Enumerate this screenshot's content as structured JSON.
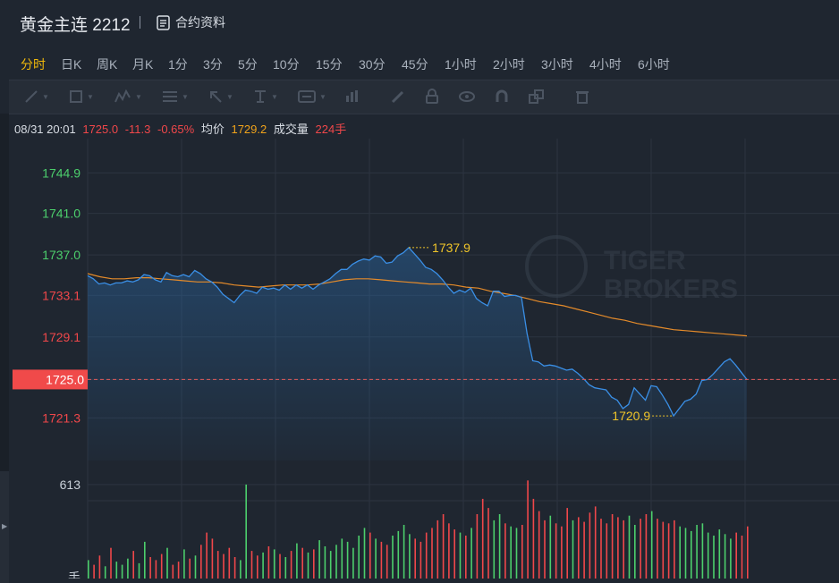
{
  "header": {
    "title": "黄金主连 2212",
    "contract_link": "合约资料"
  },
  "periods": [
    {
      "label": "分时",
      "active": true
    },
    {
      "label": "日K"
    },
    {
      "label": "周K"
    },
    {
      "label": "月K"
    },
    {
      "label": "1分"
    },
    {
      "label": "3分"
    },
    {
      "label": "5分"
    },
    {
      "label": "10分"
    },
    {
      "label": "15分"
    },
    {
      "label": "30分"
    },
    {
      "label": "45分"
    },
    {
      "label": "1小时"
    },
    {
      "label": "2小时"
    },
    {
      "label": "3小时"
    },
    {
      "label": "4小时"
    },
    {
      "label": "6小时"
    }
  ],
  "toolbar": {
    "tools": [
      "line-tool-icon",
      "rect-tool-icon",
      "pattern-tool-icon",
      "fib-tool-icon",
      "arrow-tool-icon",
      "text-tool-icon",
      "label-tool-icon",
      "chart-tool-icon",
      "pen-icon",
      "lock-icon",
      "eye-icon",
      "magnet-icon",
      "copy-icon",
      "trash-icon"
    ]
  },
  "info": {
    "datetime": "08/31 20:01",
    "price": "1725.0",
    "change": "-11.3",
    "change_pct": "-0.65%",
    "avg_label": "均价",
    "avg_value": "1729.2",
    "volume_label": "成交量",
    "volume_value": "224手"
  },
  "watermark": {
    "line1": "TIGER",
    "line2": "BROKERS"
  },
  "colors": {
    "up": "#4ccf6c",
    "down": "#f0474a",
    "price_line": "#3a8fe6",
    "avg_line": "#e58b2a",
    "label_yellow": "#f0c52a"
  },
  "chart_data": {
    "type": "line",
    "series": [
      {
        "values": [
          1735.0,
          1734.7,
          1734.2,
          1734.3,
          1734.1,
          1734.3,
          1734.3,
          1734.5,
          1734.4,
          1734.6,
          1735.1,
          1735.0,
          1734.6,
          1734.4,
          1735.3,
          1735.0,
          1734.9,
          1735.1,
          1734.9,
          1735.5,
          1735.2,
          1734.7,
          1734.4,
          1733.9,
          1733.2,
          1732.8,
          1732.4,
          1733.1,
          1733.6,
          1733.5,
          1733.3,
          1733.9,
          1733.7,
          1733.8,
          1733.6,
          1734.1,
          1733.7,
          1734.1,
          1733.8,
          1734.1,
          1733.7,
          1734.1,
          1734.4,
          1734.7,
          1735.2,
          1735.6,
          1735.6,
          1736.1,
          1736.4,
          1736.6,
          1736.5,
          1736.9,
          1736.8,
          1736.2,
          1736.3,
          1736.9,
          1737.2,
          1737.7,
          1737.1,
          1736.5,
          1735.8,
          1735.6,
          1735.2,
          1734.6,
          1733.9,
          1733.3,
          1733.6,
          1733.4,
          1733.8,
          1732.8,
          1732.4,
          1732.1,
          1733.5,
          1733.5,
          1733.0,
          1733.1,
          1733.1,
          1732.9,
          1729.4,
          1726.8,
          1726.7,
          1726.3,
          1726.4,
          1726.3,
          1726.1,
          1725.9,
          1726.0,
          1725.6,
          1725.1,
          1724.5,
          1724.2,
          1724.1,
          1724.0,
          1723.3,
          1723.0,
          1722.2,
          1722.6,
          1724.2,
          1723.6,
          1723.0,
          1724.4,
          1724.3,
          1723.5,
          1722.6,
          1721.5,
          1722.2,
          1722.9,
          1723.1,
          1723.6,
          1724.9,
          1725.0,
          1725.5,
          1726.1,
          1726.7,
          1727.0,
          1726.4,
          1725.7,
          1725.0
        ],
        "peak_label": "1737.9",
        "trough_label": "1720.9"
      },
      {
        "name": "均价",
        "values": [
          1735.2,
          1734.9,
          1734.7,
          1734.7,
          1734.8,
          1734.8,
          1734.7,
          1734.6,
          1734.5,
          1734.4,
          1734.4,
          1734.3,
          1734.1,
          1734.0,
          1733.9,
          1734.0,
          1734.1,
          1734.1,
          1734.1,
          1734.2,
          1734.4,
          1734.6,
          1734.7,
          1734.7,
          1734.6,
          1734.5,
          1734.4,
          1734.3,
          1734.2,
          1734.2,
          1734.1,
          1733.9,
          1733.8,
          1733.5,
          1733.3,
          1733.1,
          1732.8,
          1732.5,
          1732.3,
          1732.1,
          1731.8,
          1731.5,
          1731.2,
          1730.9,
          1730.7,
          1730.4,
          1730.2,
          1730.0,
          1729.8,
          1729.7,
          1729.6,
          1729.5,
          1729.4,
          1729.3,
          1729.2
        ]
      }
    ],
    "price_axis": {
      "ticks": [
        "1744.9",
        "1741.0",
        "1737.0",
        "1733.1",
        "1729.1",
        "1725.0",
        "1721.3"
      ],
      "current": "1725.0"
    },
    "volume_axis": {
      "ticks": [
        "613"
      ],
      "unit": "手"
    },
    "volume": [
      120,
      90,
      150,
      80,
      200,
      110,
      90,
      130,
      180,
      100,
      240,
      140,
      120,
      160,
      200,
      90,
      110,
      190,
      130,
      150,
      220,
      300,
      260,
      180,
      160,
      200,
      140,
      120,
      613,
      180,
      150,
      170,
      210,
      190,
      160,
      140,
      180,
      230,
      200,
      170,
      190,
      250,
      210,
      180,
      220,
      260,
      240,
      200,
      280,
      330,
      300,
      260,
      240,
      220,
      280,
      310,
      350,
      290,
      260,
      240,
      300,
      330,
      380,
      420,
      360,
      320,
      300,
      280,
      330,
      420,
      520,
      460,
      380,
      420,
      360,
      340,
      330,
      350,
      640,
      520,
      440,
      380,
      410,
      360,
      340,
      460,
      380,
      400,
      370,
      430,
      470,
      390,
      360,
      420,
      400,
      380,
      410,
      350,
      390,
      420,
      440,
      390,
      370,
      360,
      380,
      340,
      330,
      310,
      350,
      360,
      300,
      280,
      320,
      290,
      260,
      300,
      280,
      340
    ]
  }
}
